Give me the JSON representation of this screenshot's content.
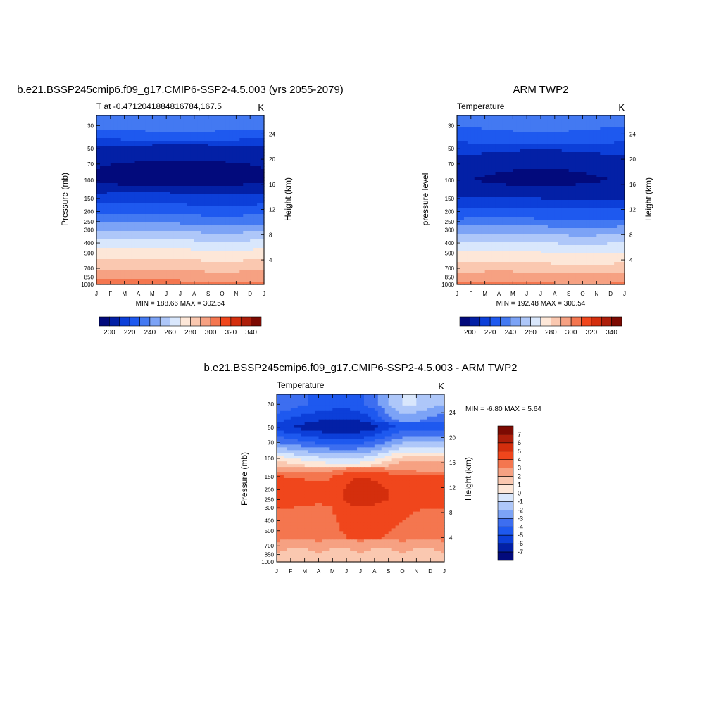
{
  "charts": {
    "model": {
      "main_title": "b.e21.BSSP245cmip6.f09_g17.CMIP6-SSP2-4.5.003 (yrs 2055-2079)",
      "left_label": "T at -0.4712041884816784,167.5",
      "unit": "K",
      "ylabel": "Pressure (mb)",
      "y2label": "Height (km)",
      "minmax": "MIN = 188.66 MAX = 302.54"
    },
    "obs": {
      "main_title": "ARM TWP2",
      "left_label": "Temperature",
      "unit": "K",
      "ylabel": "pressure level",
      "y2label": "Height (km)",
      "minmax": "MIN = 192.48 MAX = 300.54"
    },
    "diff": {
      "main_title": "b.e21.BSSP245cmip6.f09_g17.CMIP6-SSP2-4.5.003 - ARM TWP2",
      "left_label": "Temperature",
      "unit": "K",
      "ylabel": "Pressure (mb)",
      "y2label": "Height (km)",
      "minmax": "MIN =  -6.80 MAX =   5.64"
    }
  },
  "chart_data": [
    {
      "type": "heatmap",
      "title": "b.e21.BSSP245cmip6.f09_g17.CMIP6-SSP2-4.5.003 (yrs 2055-2079)",
      "xlabel": "",
      "ylabel": "Pressure (mb)",
      "y2label": "Height (km)",
      "x": [
        "J",
        "F",
        "M",
        "A",
        "M",
        "J",
        "J",
        "A",
        "S",
        "O",
        "N",
        "D",
        "J"
      ],
      "y_ticks": [
        30,
        50,
        70,
        100,
        150,
        200,
        250,
        300,
        400,
        500,
        700,
        850,
        1000
      ],
      "y2_ticks": [
        24,
        20,
        16,
        12,
        8,
        4
      ],
      "ylim": [
        1000,
        25
      ],
      "y_scale": "log",
      "levels": [
        [
          30,
          228
        ],
        [
          50,
          204
        ],
        [
          70,
          196
        ],
        [
          100,
          192
        ],
        [
          150,
          210
        ],
        [
          200,
          222
        ],
        [
          250,
          232
        ],
        [
          300,
          243
        ],
        [
          400,
          258
        ],
        [
          500,
          270
        ],
        [
          700,
          282
        ],
        [
          850,
          292
        ],
        [
          1000,
          299
        ]
      ],
      "colorbar": {
        "orientation": "horizontal",
        "labels": [
          200,
          220,
          240,
          260,
          280,
          300,
          320,
          340
        ]
      }
    },
    {
      "type": "heatmap",
      "title": "ARM TWP2",
      "xlabel": "",
      "ylabel": "pressure level",
      "y2label": "Height (km)",
      "x": [
        "J",
        "F",
        "M",
        "A",
        "M",
        "J",
        "J",
        "A",
        "S",
        "O",
        "N",
        "D",
        "J"
      ],
      "y_ticks": [
        30,
        50,
        70,
        100,
        150,
        200,
        250,
        300,
        400,
        500,
        700,
        850,
        1000
      ],
      "y2_ticks": [
        24,
        20,
        16,
        12,
        8,
        4
      ],
      "ylim": [
        1000,
        25
      ],
      "y_scale": "log",
      "levels": [
        [
          30,
          225
        ],
        [
          50,
          210
        ],
        [
          70,
          200
        ],
        [
          100,
          196
        ],
        [
          150,
          205
        ],
        [
          200,
          218
        ],
        [
          250,
          228
        ],
        [
          300,
          240
        ],
        [
          400,
          255
        ],
        [
          500,
          266
        ],
        [
          700,
          280
        ],
        [
          850,
          290
        ],
        [
          1000,
          297
        ]
      ],
      "colorbar": {
        "orientation": "horizontal",
        "labels": [
          200,
          220,
          240,
          260,
          280,
          300,
          320,
          340
        ]
      }
    },
    {
      "type": "heatmap",
      "title": "b.e21.BSSP245cmip6.f09_g17.CMIP6-SSP2-4.5.003 - ARM TWP2",
      "xlabel": "",
      "ylabel": "Pressure (mb)",
      "y2label": "Height (km)",
      "x": [
        "J",
        "F",
        "M",
        "A",
        "M",
        "J",
        "J",
        "A",
        "S",
        "O",
        "N",
        "D",
        "J"
      ],
      "y_ticks": [
        30,
        50,
        70,
        100,
        150,
        200,
        250,
        300,
        400,
        500,
        700,
        850,
        1000
      ],
      "y2_ticks": [
        24,
        20,
        16,
        12,
        8,
        4
      ],
      "ylim": [
        1000,
        25
      ],
      "y_scale": "log",
      "levels": [
        [
          30,
          -3
        ],
        [
          50,
          -5.5
        ],
        [
          70,
          -3
        ],
        [
          100,
          0.5
        ],
        [
          150,
          4
        ],
        [
          200,
          4.5
        ],
        [
          250,
          4.5
        ],
        [
          300,
          4
        ],
        [
          400,
          3.8
        ],
        [
          500,
          3.6
        ],
        [
          700,
          3
        ],
        [
          850,
          2
        ],
        [
          1000,
          2
        ]
      ],
      "colorbar": {
        "orientation": "vertical",
        "labels": [
          7,
          6,
          5,
          4,
          3,
          2,
          1,
          0,
          -1,
          -2,
          -3,
          -4,
          -5,
          -6,
          -7
        ]
      }
    }
  ],
  "colors": {
    "abs_scale": [
      "#020a7c",
      "#0320a6",
      "#0c3fd9",
      "#1e59ef",
      "#4379f2",
      "#7ca3f6",
      "#aec7f9",
      "#d9e7fc",
      "#fde7d8",
      "#fac8b0",
      "#f6a182",
      "#f4764f",
      "#f0461c",
      "#d42e0d",
      "#ad1e0a",
      "#7c0a02"
    ],
    "diff_scale": [
      "#020a7c",
      "#0320a6",
      "#0c3fd9",
      "#1e59ef",
      "#3d6ef0",
      "#7ca3f6",
      "#aec7f9",
      "#d9e7fc",
      "#fde7d8",
      "#fac8b0",
      "#f6a182",
      "#f4764f",
      "#f0461c",
      "#d42e0d",
      "#ad1e0a",
      "#7c0a02"
    ]
  }
}
